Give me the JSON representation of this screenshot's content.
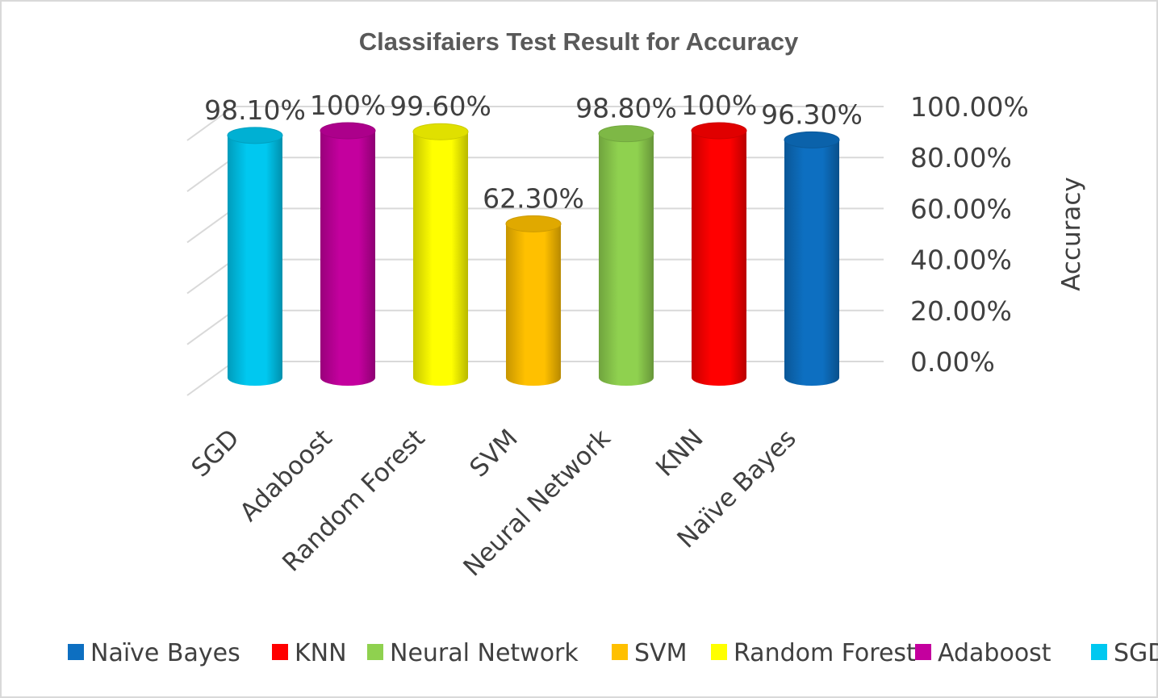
{
  "chart_data": {
    "type": "bar",
    "style": "3d-cylinder",
    "title": "Classifaiers Test Result for Accuracy",
    "ylabel": "Accuracy",
    "xlabel": "",
    "ylim": [
      0,
      1
    ],
    "y_axis_position": "right",
    "yticks": [
      "100.00%",
      "80.00%",
      "60.00%",
      "40.00%",
      "20.00%",
      "0.00%"
    ],
    "grid": true,
    "legend_position": "bottom",
    "categories": [
      "SGD",
      "Adaboost",
      "Random Forest",
      "SVM",
      "Neural Network",
      "KNN",
      "Naïve Bayes"
    ],
    "values": [
      0.981,
      1.0,
      0.996,
      0.623,
      0.988,
      1.0,
      0.963
    ],
    "data_labels": [
      "98.10%",
      "100%",
      "99.60%",
      "62.30%",
      "98.80%",
      "100%",
      "96.30%"
    ],
    "colors": [
      "#00c8f0",
      "#c4009e",
      "#ffff00",
      "#ffc000",
      "#8fd14f",
      "#ff0000",
      "#0d6fc1"
    ],
    "legend": [
      {
        "name": "Naïve Bayes",
        "color": "#0d6fc1"
      },
      {
        "name": "KNN",
        "color": "#ff0000"
      },
      {
        "name": "Neural Network",
        "color": "#8fd14f"
      },
      {
        "name": "SVM",
        "color": "#ffc000"
      },
      {
        "name": "Random Forest",
        "color": "#ffff00"
      },
      {
        "name": "Adaboost",
        "color": "#c4009e"
      },
      {
        "name": "SGD",
        "color": "#00c8f0"
      }
    ]
  }
}
